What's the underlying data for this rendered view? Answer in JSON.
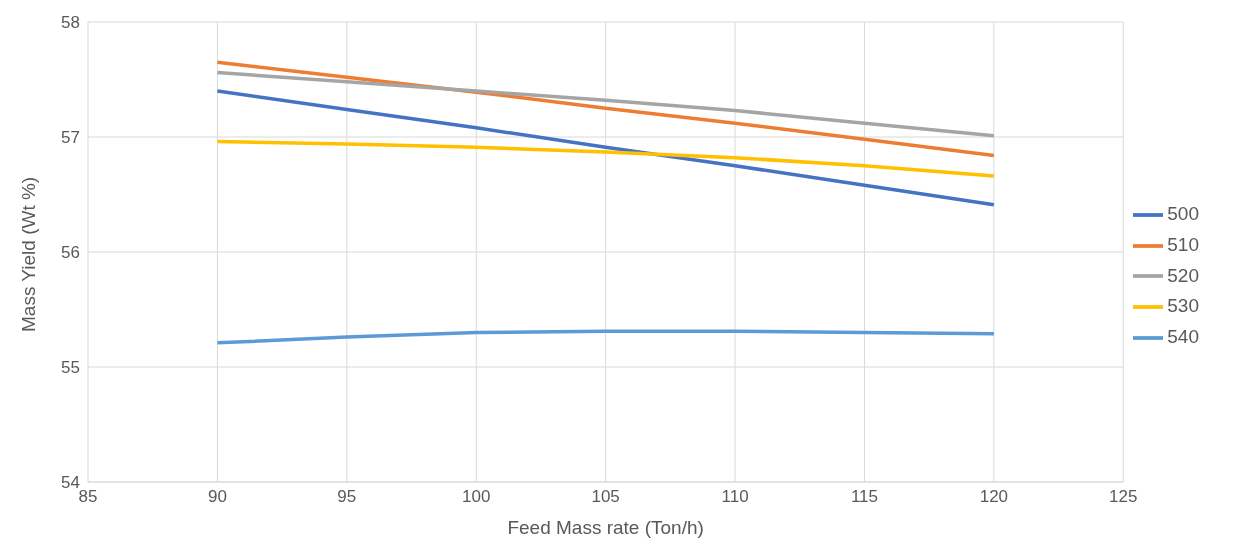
{
  "chart_data": {
    "type": "line",
    "xlabel": "Feed Mass rate (Ton/h)",
    "ylabel": "Mass Yield (Wt %)",
    "x": [
      90,
      95,
      100,
      105,
      110,
      115,
      120
    ],
    "series": [
      {
        "name": "500",
        "color": "#4472c4",
        "values": [
          57.4,
          57.24,
          57.08,
          56.91,
          56.75,
          56.58,
          56.41
        ]
      },
      {
        "name": "510",
        "color": "#ed7d31",
        "values": [
          57.65,
          57.52,
          57.39,
          57.25,
          57.12,
          56.98,
          56.84
        ]
      },
      {
        "name": "520",
        "color": "#a5a5a5",
        "values": [
          57.56,
          57.48,
          57.4,
          57.32,
          57.23,
          57.12,
          57.01
        ]
      },
      {
        "name": "530",
        "color": "#ffc000",
        "values": [
          56.96,
          56.94,
          56.91,
          56.87,
          56.82,
          56.75,
          56.66
        ]
      },
      {
        "name": "540",
        "color": "#5b9bd5",
        "values": [
          55.21,
          55.26,
          55.3,
          55.31,
          55.31,
          55.3,
          55.29
        ]
      }
    ],
    "xlim": [
      85,
      125
    ],
    "xticks": [
      85,
      90,
      95,
      100,
      105,
      110,
      115,
      120,
      125
    ],
    "ylim": [
      54,
      58
    ],
    "yticks": [
      54,
      55,
      56,
      57,
      58
    ],
    "grid": true,
    "legend": "right",
    "marker": "none",
    "line_style": "solid"
  }
}
